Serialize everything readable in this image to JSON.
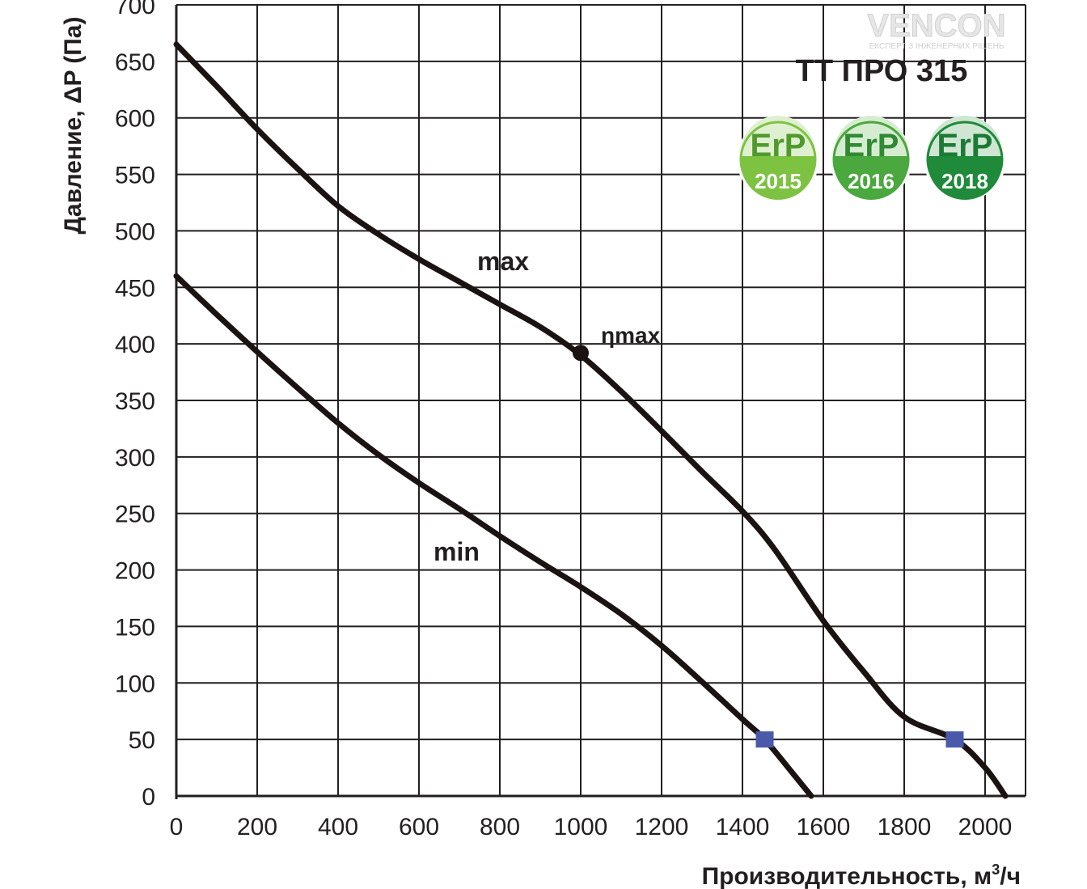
{
  "chart_data": {
    "type": "line",
    "title": "ТТ ПРО 315",
    "xlabel": "Производительность,  м",
    "xlabel_sup": "3",
    "xlabel_tail": "/ч",
    "ylabel": "Давление, ΔP (Па)",
    "xlim": [
      0,
      2100
    ],
    "ylim": [
      0,
      700
    ],
    "xticks": [
      0,
      200,
      400,
      600,
      800,
      1000,
      1200,
      1400,
      1600,
      1800,
      2000
    ],
    "yticks": [
      0,
      50,
      100,
      150,
      200,
      250,
      300,
      350,
      400,
      450,
      500,
      550,
      600,
      650,
      700
    ],
    "grid": true,
    "series": [
      {
        "name": "max",
        "x": [
          0,
          100,
          200,
          300,
          400,
          500,
          600,
          700,
          800,
          900,
          1000,
          1100,
          1200,
          1300,
          1400,
          1480,
          1600,
          1700,
          1800,
          1925,
          2000,
          2050
        ],
        "y": [
          665,
          628,
          590,
          555,
          522,
          497,
          475,
          455,
          435,
          415,
          390,
          358,
          323,
          287,
          252,
          218,
          155,
          110,
          70,
          50,
          25,
          0
        ]
      },
      {
        "name": "min",
        "x": [
          0,
          100,
          200,
          300,
          400,
          500,
          600,
          700,
          800,
          900,
          1000,
          1100,
          1200,
          1300,
          1400,
          1455,
          1520,
          1570
        ],
        "y": [
          460,
          426,
          393,
          361,
          330,
          302,
          277,
          254,
          230,
          207,
          185,
          161,
          133,
          101,
          68,
          50,
          22,
          0
        ]
      }
    ],
    "annotations": [
      {
        "text": "max",
        "x": 750,
        "y": 460
      },
      {
        "text": "min",
        "x": 700,
        "y": 205
      },
      {
        "text": "ηmax",
        "x": 1000,
        "y": 392,
        "marker": "dot",
        "label_x": 1060,
        "label_y": 405
      }
    ],
    "markers": [
      {
        "x": 1455,
        "y": 50,
        "shape": "square",
        "color": "#4a5aa8"
      },
      {
        "x": 1925,
        "y": 50,
        "shape": "square",
        "color": "#4a5aa8"
      }
    ]
  },
  "badges": [
    {
      "text": "ErP",
      "year": "2015",
      "color": "#7ec242"
    },
    {
      "text": "ErP",
      "year": "2016",
      "color": "#4aa83e"
    },
    {
      "text": "ErP",
      "year": "2018",
      "color": "#1f8a3a"
    }
  ],
  "logo": {
    "text": "VENCON",
    "tagline": "ЕКСПЕРТ З ІНЖЕНЕРНИХ РІШЕНЬ"
  },
  "colors": {
    "curve": "#1a1311",
    "grid": "#231f20",
    "marker": "#4a5aa8",
    "text": "#231f20"
  }
}
